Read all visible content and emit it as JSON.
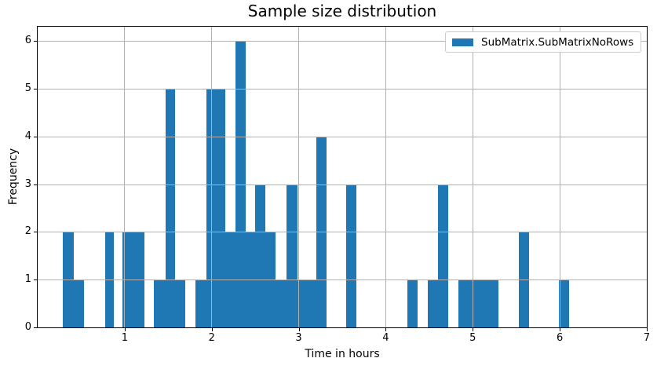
{
  "chart_data": {
    "type": "bar",
    "subtype": "histogram",
    "title": "Sample size distribution",
    "xlabel": "Time in hours",
    "ylabel": "Frequency",
    "xlim": [
      0,
      7
    ],
    "ylim": [
      0,
      6.3
    ],
    "xticks": [
      1,
      2,
      3,
      4,
      5,
      6,
      7
    ],
    "yticks": [
      0,
      1,
      2,
      3,
      4,
      5,
      6
    ],
    "grid": true,
    "grid_color": "#b0b0b0",
    "bar_color": "#1f77b4",
    "legend": {
      "label": "SubMatrix.SubMatrixNoRows",
      "position": "upper right",
      "border_color": "#cccccc"
    },
    "bars": [
      {
        "x0": 0.293,
        "x1": 0.418,
        "freq": 2
      },
      {
        "x0": 0.418,
        "x1": 0.528,
        "freq": 1
      },
      {
        "x0": 0.773,
        "x1": 0.879,
        "freq": 2
      },
      {
        "x0": 0.974,
        "x1": 1.224,
        "freq": 2
      },
      {
        "x0": 1.334,
        "x1": 1.468,
        "freq": 1
      },
      {
        "x0": 1.468,
        "x1": 1.575,
        "freq": 5
      },
      {
        "x0": 1.575,
        "x1": 1.692,
        "freq": 1
      },
      {
        "x0": 1.815,
        "x1": 1.936,
        "freq": 1
      },
      {
        "x0": 1.936,
        "x1": 2.152,
        "freq": 5
      },
      {
        "x0": 2.152,
        "x1": 2.275,
        "freq": 2
      },
      {
        "x0": 2.275,
        "x1": 2.387,
        "freq": 6
      },
      {
        "x0": 2.387,
        "x1": 2.5,
        "freq": 2
      },
      {
        "x0": 2.5,
        "x1": 2.612,
        "freq": 3
      },
      {
        "x0": 2.612,
        "x1": 2.732,
        "freq": 2
      },
      {
        "x0": 2.732,
        "x1": 2.858,
        "freq": 1
      },
      {
        "x0": 2.858,
        "x1": 2.987,
        "freq": 3
      },
      {
        "x0": 2.987,
        "x1": 3.2,
        "freq": 1
      },
      {
        "x0": 3.2,
        "x1": 3.318,
        "freq": 4
      },
      {
        "x0": 3.544,
        "x1": 3.664,
        "freq": 3
      },
      {
        "x0": 4.25,
        "x1": 4.365,
        "freq": 1
      },
      {
        "x0": 4.482,
        "x1": 4.602,
        "freq": 1
      },
      {
        "x0": 4.602,
        "x1": 4.716,
        "freq": 3
      },
      {
        "x0": 4.831,
        "x1": 5.296,
        "freq": 1
      },
      {
        "x0": 5.528,
        "x1": 5.648,
        "freq": 2
      },
      {
        "x0": 5.988,
        "x1": 6.105,
        "freq": 1
      }
    ]
  }
}
